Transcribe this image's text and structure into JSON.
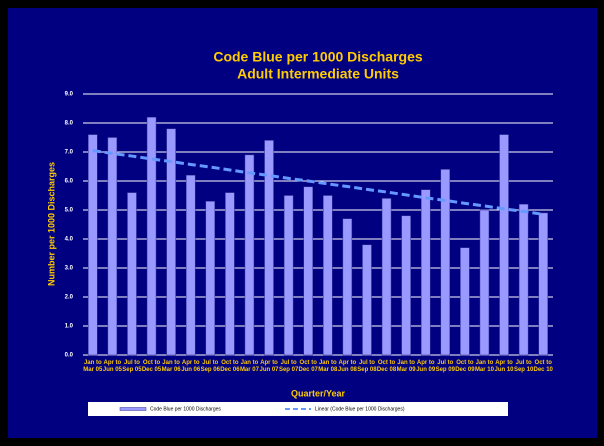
{
  "chart_data": {
    "type": "bar",
    "title": "Code Blue per 1000 Discharges",
    "subtitle": "Adult Intermediate Units",
    "y_label": "Number per 1000 Discharges",
    "x_label": "Quarter/Year",
    "categories": [
      "Jan to Mar 05",
      "Apr to Jun 05",
      "Jul to Sep 05",
      "Oct to Dec 05",
      "Jan to Mar 06",
      "Apr to Jun 06",
      "Jul to Sep 06",
      "Oct to Dec 06",
      "Jan to Mar 07",
      "Apr to Jun 07",
      "Jul to Sep 07",
      "Oct to Dec 07",
      "Jan to Mar 08",
      "Apr to Jun 08",
      "Jul to Sep 08",
      "Oct to Dec 08",
      "Jan to Mar 09",
      "Apr to Jun 09",
      "Jul to Sep 09",
      "Oct to Dec 09",
      "Jan to Mar 10",
      "Apr to Jun 10",
      "Jul to Sep 10",
      "Oct to Dec 10"
    ],
    "series": [
      {
        "name": "Code Blue per 1000 Discharges",
        "color": "#9999ff",
        "type": "bar",
        "values": [
          7.6,
          7.5,
          5.6,
          8.2,
          7.8,
          6.2,
          5.3,
          5.6,
          6.9,
          7.4,
          5.5,
          5.8,
          5.5,
          4.7,
          3.8,
          5.4,
          4.8,
          5.7,
          6.4,
          3.7,
          5.0,
          7.6,
          5.2,
          4.9
        ]
      },
      {
        "name": "Linear (Code Blue per 1000 Discharges)",
        "color": "#6699ff",
        "type": "line",
        "values": [
          7.05,
          6.95,
          6.86,
          6.76,
          6.67,
          6.57,
          6.48,
          6.38,
          6.28,
          6.19,
          6.09,
          6.0,
          5.9,
          5.81,
          5.71,
          5.62,
          5.52,
          5.42,
          5.33,
          5.23,
          5.14,
          5.04,
          4.95,
          4.85
        ]
      }
    ],
    "ylim": [
      0,
      9
    ],
    "yticks": [
      {
        "value": 0,
        "label": "0.0"
      },
      {
        "value": 1,
        "label": "1.0"
      },
      {
        "value": 2,
        "label": "2.0"
      },
      {
        "value": 3,
        "label": "3.0"
      },
      {
        "value": 4,
        "label": "4.0"
      },
      {
        "value": 5,
        "label": "5.0"
      },
      {
        "value": 6,
        "label": "6.0"
      },
      {
        "value": 7,
        "label": "7.0"
      },
      {
        "value": 8,
        "label": "8.0"
      },
      {
        "value": 9,
        "label": "9.0"
      }
    ],
    "grid": true,
    "legend": "bottom"
  }
}
